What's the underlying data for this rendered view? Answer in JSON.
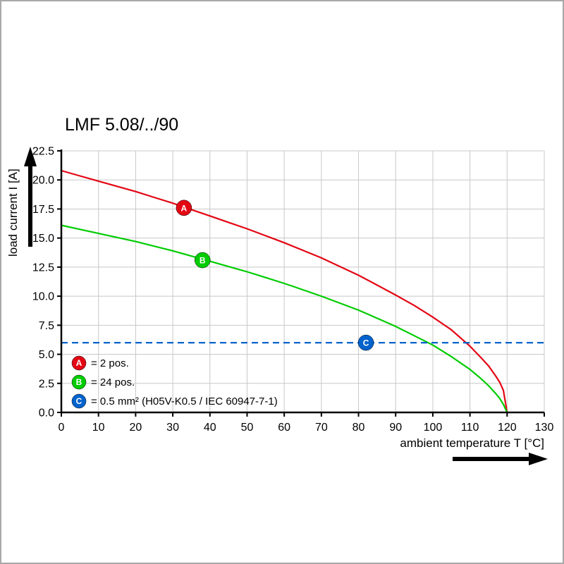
{
  "chart_data": {
    "type": "line",
    "title": "LMF 5.08/../90",
    "xlabel": "ambient temperature T [°C]",
    "ylabel": "load current I [A]",
    "xlim": [
      0,
      130
    ],
    "ylim": [
      0,
      22.5
    ],
    "grid": true,
    "legend_position": "lower-left-inside",
    "x_ticks": [
      0,
      10,
      20,
      30,
      40,
      50,
      60,
      70,
      80,
      90,
      100,
      110,
      120,
      130
    ],
    "x_tick_labels": [
      "0",
      "10",
      "20",
      "30",
      "40",
      "50",
      "60",
      "70",
      "80",
      "90",
      "100",
      "110",
      "120",
      "130"
    ],
    "y_ticks": [
      0,
      2.5,
      5,
      7.5,
      10,
      12.5,
      15,
      17.5,
      20,
      22.5
    ],
    "y_tick_labels": [
      "0.0",
      "2.5",
      "5.0",
      "7.5",
      "10.0",
      "12.5",
      "15.0",
      "17.5",
      "20.0",
      "22.5"
    ],
    "series": [
      {
        "name": "A",
        "legend_label": "= 2 pos.",
        "color": "#e30613",
        "style": "solid",
        "marker": {
          "x": 33,
          "y": 17.6
        },
        "x": [
          0,
          5,
          10,
          15,
          20,
          25,
          30,
          35,
          40,
          45,
          50,
          55,
          60,
          65,
          70,
          75,
          80,
          85,
          90,
          95,
          100,
          105,
          110,
          113,
          115,
          117,
          118,
          119,
          120
        ],
        "y": [
          20.8,
          20.35,
          19.9,
          19.45,
          19.0,
          18.5,
          18.0,
          17.45,
          16.9,
          16.35,
          15.8,
          15.2,
          14.6,
          13.95,
          13.3,
          12.55,
          11.8,
          10.95,
          10.1,
          9.2,
          8.2,
          7.1,
          5.7,
          4.7,
          4.0,
          3.1,
          2.6,
          1.9,
          0
        ]
      },
      {
        "name": "B",
        "legend_label": "= 24 pos.",
        "color": "#00cc00",
        "style": "solid",
        "marker": {
          "x": 38,
          "y": 13.1
        },
        "x": [
          0,
          5,
          10,
          15,
          20,
          25,
          30,
          35,
          40,
          45,
          50,
          55,
          60,
          65,
          70,
          75,
          80,
          85,
          90,
          95,
          100,
          105,
          110,
          113,
          115,
          117,
          118,
          119,
          120
        ],
        "y": [
          16.1,
          15.75,
          15.4,
          15.05,
          14.7,
          14.3,
          13.9,
          13.45,
          13.0,
          12.55,
          12.1,
          11.6,
          11.1,
          10.55,
          10.0,
          9.4,
          8.8,
          8.1,
          7.4,
          6.6,
          5.8,
          4.8,
          3.7,
          2.9,
          2.3,
          1.6,
          1.2,
          0.7,
          0
        ]
      },
      {
        "name": "C",
        "legend_label": "= 0.5 mm² (H05V-K0.5 / IEC 60947-7-1)",
        "color": "#0063cc",
        "style": "dashed",
        "marker": {
          "x": 82,
          "y": 6
        },
        "x": [
          0,
          130
        ],
        "y": [
          6,
          6
        ]
      }
    ],
    "colors": {
      "grid": "#c8c8c8",
      "axis": "#000000",
      "series_a": "#e30613",
      "series_b": "#00cc00",
      "series_c": "#0063cc"
    }
  }
}
